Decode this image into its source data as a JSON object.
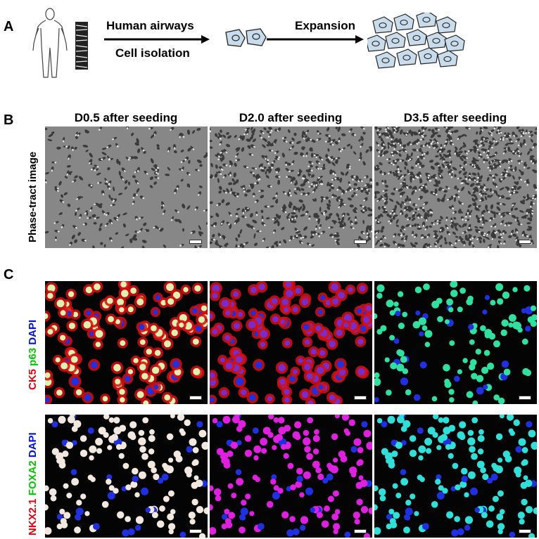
{
  "panel_a": {
    "letter": "A",
    "arrow1_top": "Human airways",
    "arrow1_bottom": "Cell isolation",
    "arrow2_top": "Expansion"
  },
  "panel_b": {
    "letter": "B",
    "row_label": "Phase-tract image",
    "columns": [
      "D0.5 after seeding",
      "D2.0 after seeding",
      "D3.5 after seeding"
    ]
  },
  "panel_c": {
    "letter": "C",
    "row1_label": [
      {
        "text": "CK5",
        "color": "#e8000b"
      },
      {
        "text": " p63",
        "color": "#00c800"
      },
      {
        "text": " DAPI",
        "color": "#0010e0"
      }
    ],
    "row2_label": [
      {
        "text": "NKX2.1",
        "color": "#e8000b"
      },
      {
        "text": " FOXA2",
        "color": "#00c800"
      },
      {
        "text": " DAPI",
        "color": "#0010e0"
      }
    ]
  },
  "colors": {
    "cell_fill": "#c9dcec",
    "ck5_red": "#e01010",
    "p63_green": "#30e080",
    "dapi_blue": "#2030e0",
    "nkx_magenta": "#e020e0",
    "foxa_cyan": "#30e0c8"
  },
  "icons": [
    "human-body-icon",
    "airway-tissue-icon",
    "cell-pair-icon",
    "cell-cluster-icon"
  ]
}
